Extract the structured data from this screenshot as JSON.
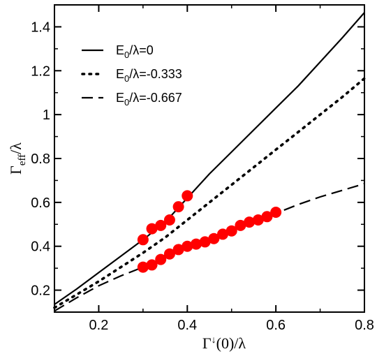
{
  "chart_data": {
    "type": "line",
    "xlabel": "Γ↓(0)/λ",
    "ylabel": "Γeff/λ",
    "xlim": [
      0.1,
      0.8
    ],
    "ylim": [
      0.1,
      1.5
    ],
    "x_ticks": [
      "0.2",
      "0.4",
      "0.6",
      "0.8"
    ],
    "y_ticks": [
      "0.2",
      "0.4",
      "0.6",
      "0.8",
      "1",
      "1.2",
      "1.4"
    ],
    "grid": false,
    "legend_position": "top-left",
    "series": [
      {
        "name": "E0/λ=0",
        "legend_main": "E",
        "legend_sub": "0",
        "legend_rest": "/λ=0",
        "style": "solid",
        "color": "#000000",
        "x": [
          0.1,
          0.15,
          0.2,
          0.25,
          0.3,
          0.35,
          0.4,
          0.45,
          0.5,
          0.55,
          0.6,
          0.65,
          0.7,
          0.75,
          0.8
        ],
        "y": [
          0.135,
          0.205,
          0.28,
          0.355,
          0.43,
          0.51,
          0.62,
          0.73,
          0.83,
          0.93,
          1.03,
          1.13,
          1.24,
          1.35,
          1.465
        ]
      },
      {
        "name": "E0/λ=-0.333",
        "legend_main": "E",
        "legend_sub": "0",
        "legend_rest": "/λ=-0.333",
        "style": "dotted",
        "color": "#000000",
        "x": [
          0.1,
          0.15,
          0.2,
          0.25,
          0.3,
          0.35,
          0.4,
          0.45,
          0.5,
          0.55,
          0.6,
          0.65,
          0.7,
          0.75,
          0.8
        ],
        "y": [
          0.12,
          0.18,
          0.24,
          0.305,
          0.37,
          0.44,
          0.52,
          0.6,
          0.68,
          0.76,
          0.84,
          0.92,
          1.0,
          1.08,
          1.165
        ]
      },
      {
        "name": "E0/λ=-0.667",
        "legend_main": "E",
        "legend_sub": "0",
        "legend_rest": "/λ=-0.667",
        "style": "dashed",
        "color": "#000000",
        "x": [
          0.1,
          0.15,
          0.2,
          0.25,
          0.3,
          0.35,
          0.4,
          0.45,
          0.5,
          0.55,
          0.6,
          0.65,
          0.7,
          0.75,
          0.8
        ],
        "y": [
          0.105,
          0.165,
          0.22,
          0.265,
          0.305,
          0.36,
          0.4,
          0.435,
          0.47,
          0.51,
          0.55,
          0.59,
          0.625,
          0.655,
          0.685
        ]
      },
      {
        "name": "points-upper",
        "style": "markers",
        "color": "#ff0000",
        "x": [
          0.3,
          0.32,
          0.34,
          0.36,
          0.38,
          0.4
        ],
        "y": [
          0.43,
          0.48,
          0.495,
          0.52,
          0.58,
          0.63
        ]
      },
      {
        "name": "points-lower",
        "style": "markers",
        "color": "#ff0000",
        "x": [
          0.3,
          0.32,
          0.34,
          0.36,
          0.38,
          0.4,
          0.42,
          0.44,
          0.46,
          0.48,
          0.5,
          0.52,
          0.54,
          0.56,
          0.58,
          0.6
        ],
        "y": [
          0.305,
          0.315,
          0.34,
          0.365,
          0.385,
          0.4,
          0.41,
          0.42,
          0.435,
          0.455,
          0.47,
          0.495,
          0.51,
          0.52,
          0.535,
          0.555
        ]
      }
    ]
  }
}
